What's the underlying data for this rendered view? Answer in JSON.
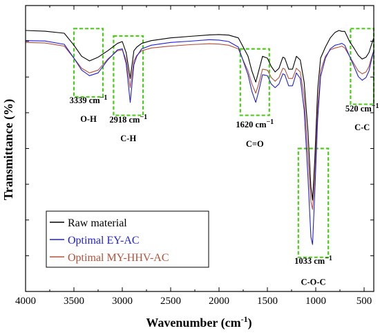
{
  "chart_data": {
    "type": "line",
    "xlabel": "Wavenumber (cm",
    "xlabel_sup": "-1",
    "xlabel_close": ")",
    "ylabel": "Transmittance (%)",
    "xlim": [
      4000,
      400
    ],
    "x_reversed": true,
    "x_ticks": [
      "4000",
      "3500",
      "3000",
      "2500",
      "2000",
      "1500",
      "1000",
      "500"
    ],
    "y_ticks_labeled": false,
    "grid": false,
    "legend_position": "bottom-left",
    "y_units": "relative transmittance (arbitrary, top = 100)",
    "series": [
      {
        "name": "Raw material",
        "color": "#000000",
        "x": [
          4000,
          3800,
          3600,
          3500,
          3420,
          3339,
          3250,
          3150,
          3050,
          3000,
          2960,
          2918,
          2880,
          2850,
          2800,
          2700,
          2500,
          2300,
          2100,
          2000,
          1900,
          1800,
          1760,
          1700,
          1660,
          1620,
          1590,
          1550,
          1500,
          1460,
          1420,
          1380,
          1340,
          1320,
          1280,
          1240,
          1200,
          1160,
          1120,
          1080,
          1050,
          1033,
          1010,
          980,
          950,
          900,
          850,
          800,
          760,
          730,
          700,
          650,
          600,
          560,
          520,
          480,
          450,
          420,
          400
        ],
        "y": [
          100,
          99.6,
          98.5,
          92,
          86,
          83.5,
          85.5,
          89,
          93,
          94,
          88,
          74,
          89,
          91,
          93,
          94.5,
          96,
          96.8,
          97.6,
          97.8,
          97.5,
          96,
          92,
          86,
          78,
          72,
          78,
          86,
          85,
          80.5,
          77.5,
          79.5,
          85.5,
          85,
          79,
          79,
          86,
          84,
          72,
          45,
          15,
          8,
          30,
          68,
          85,
          91,
          96,
          99,
          100,
          99.5,
          99.5,
          94,
          90,
          86.5,
          84.5,
          85.5,
          88,
          93,
          96
        ]
      },
      {
        "name": "Optimal EY-AC",
        "color": "#1f1fd8",
        "x": [
          4000,
          3800,
          3600,
          3500,
          3420,
          3339,
          3250,
          3150,
          3050,
          3000,
          2960,
          2918,
          2880,
          2850,
          2800,
          2700,
          2500,
          2300,
          2100,
          2000,
          1900,
          1800,
          1760,
          1700,
          1660,
          1620,
          1590,
          1550,
          1500,
          1460,
          1420,
          1380,
          1340,
          1320,
          1280,
          1240,
          1200,
          1160,
          1120,
          1080,
          1050,
          1033,
          1010,
          980,
          950,
          900,
          850,
          800,
          760,
          730,
          700,
          650,
          600,
          560,
          520,
          480,
          450,
          420,
          400
        ],
        "y": [
          94.5,
          94.3,
          92.5,
          85,
          78.5,
          75.5,
          77,
          84,
          89.5,
          90,
          82,
          61,
          81.5,
          86,
          90,
          92,
          93.5,
          94.2,
          95,
          94.8,
          94,
          91,
          85,
          76,
          67,
          61,
          67,
          76,
          75.5,
          71,
          69,
          71,
          76.5,
          76,
          70,
          70,
          77,
          74,
          57,
          20,
          -12,
          -16,
          12,
          52,
          75,
          85,
          90,
          92,
          92.5,
          93,
          92,
          86,
          80,
          75,
          73,
          74.5,
          78,
          85,
          89
        ]
      },
      {
        "name": "Optimal MY-HHV-AC",
        "color": "#b5503a",
        "x": [
          4000,
          3800,
          3600,
          3500,
          3420,
          3339,
          3250,
          3150,
          3050,
          3000,
          2960,
          2918,
          2880,
          2850,
          2800,
          2700,
          2500,
          2300,
          2100,
          2000,
          1900,
          1800,
          1760,
          1700,
          1660,
          1620,
          1590,
          1550,
          1500,
          1460,
          1420,
          1380,
          1340,
          1320,
          1280,
          1240,
          1200,
          1160,
          1120,
          1080,
          1050,
          1033,
          1010,
          980,
          950,
          900,
          850,
          800,
          760,
          730,
          700,
          650,
          600,
          560,
          520,
          480,
          450,
          420,
          400
        ],
        "y": [
          93.5,
          93.2,
          91.5,
          85,
          79.5,
          77,
          78.5,
          84.5,
          89,
          89.5,
          84,
          69,
          83.5,
          86.5,
          89,
          90.5,
          91.5,
          92.3,
          92.8,
          92.6,
          92,
          90,
          85,
          78,
          71,
          66,
          71,
          79,
          78.5,
          74.5,
          72.5,
          74.5,
          79.5,
          79,
          74,
          74,
          79.5,
          77.5,
          64,
          32,
          7,
          3,
          20,
          58,
          78,
          86,
          89.5,
          90.5,
          91,
          91.5,
          90.5,
          86,
          81.5,
          78,
          76.5,
          77.5,
          80.5,
          86,
          89
        ]
      }
    ],
    "annotations": [
      {
        "label": "3339 cm",
        "sup": "−1",
        "group": "O-H",
        "x_from": 3500,
        "x_to": 3200,
        "y_top": 101,
        "y_bottom": 64,
        "label_y": 60.5,
        "group_y": 50.5
      },
      {
        "label": "2918 cm",
        "sup": "−1",
        "group": "C-H",
        "x_from": 3090,
        "x_to": 2785,
        "y_top": 97,
        "y_bottom": 54,
        "label_y": 50,
        "group_y": 40
      },
      {
        "label": "1620 cm",
        "sup": "−1",
        "group": "C=O",
        "x_from": 1780,
        "x_to": 1480,
        "y_top": 90,
        "y_bottom": 54,
        "label_y": 47.5,
        "group_y": 37
      },
      {
        "label": "1033 cm",
        "sup": "−1",
        "group": "C-O-C",
        "x_from": 1180,
        "x_to": 870,
        "y_top": 36,
        "y_bottom": -23,
        "label_y": -26.5,
        "group_y": -38
      },
      {
        "label": "520 cm",
        "sup": "−1",
        "group": "C-C",
        "x_from": 640,
        "x_to": 400,
        "y_top": 101,
        "y_bottom": 60,
        "label_y": 56,
        "group_y": 46
      }
    ]
  }
}
